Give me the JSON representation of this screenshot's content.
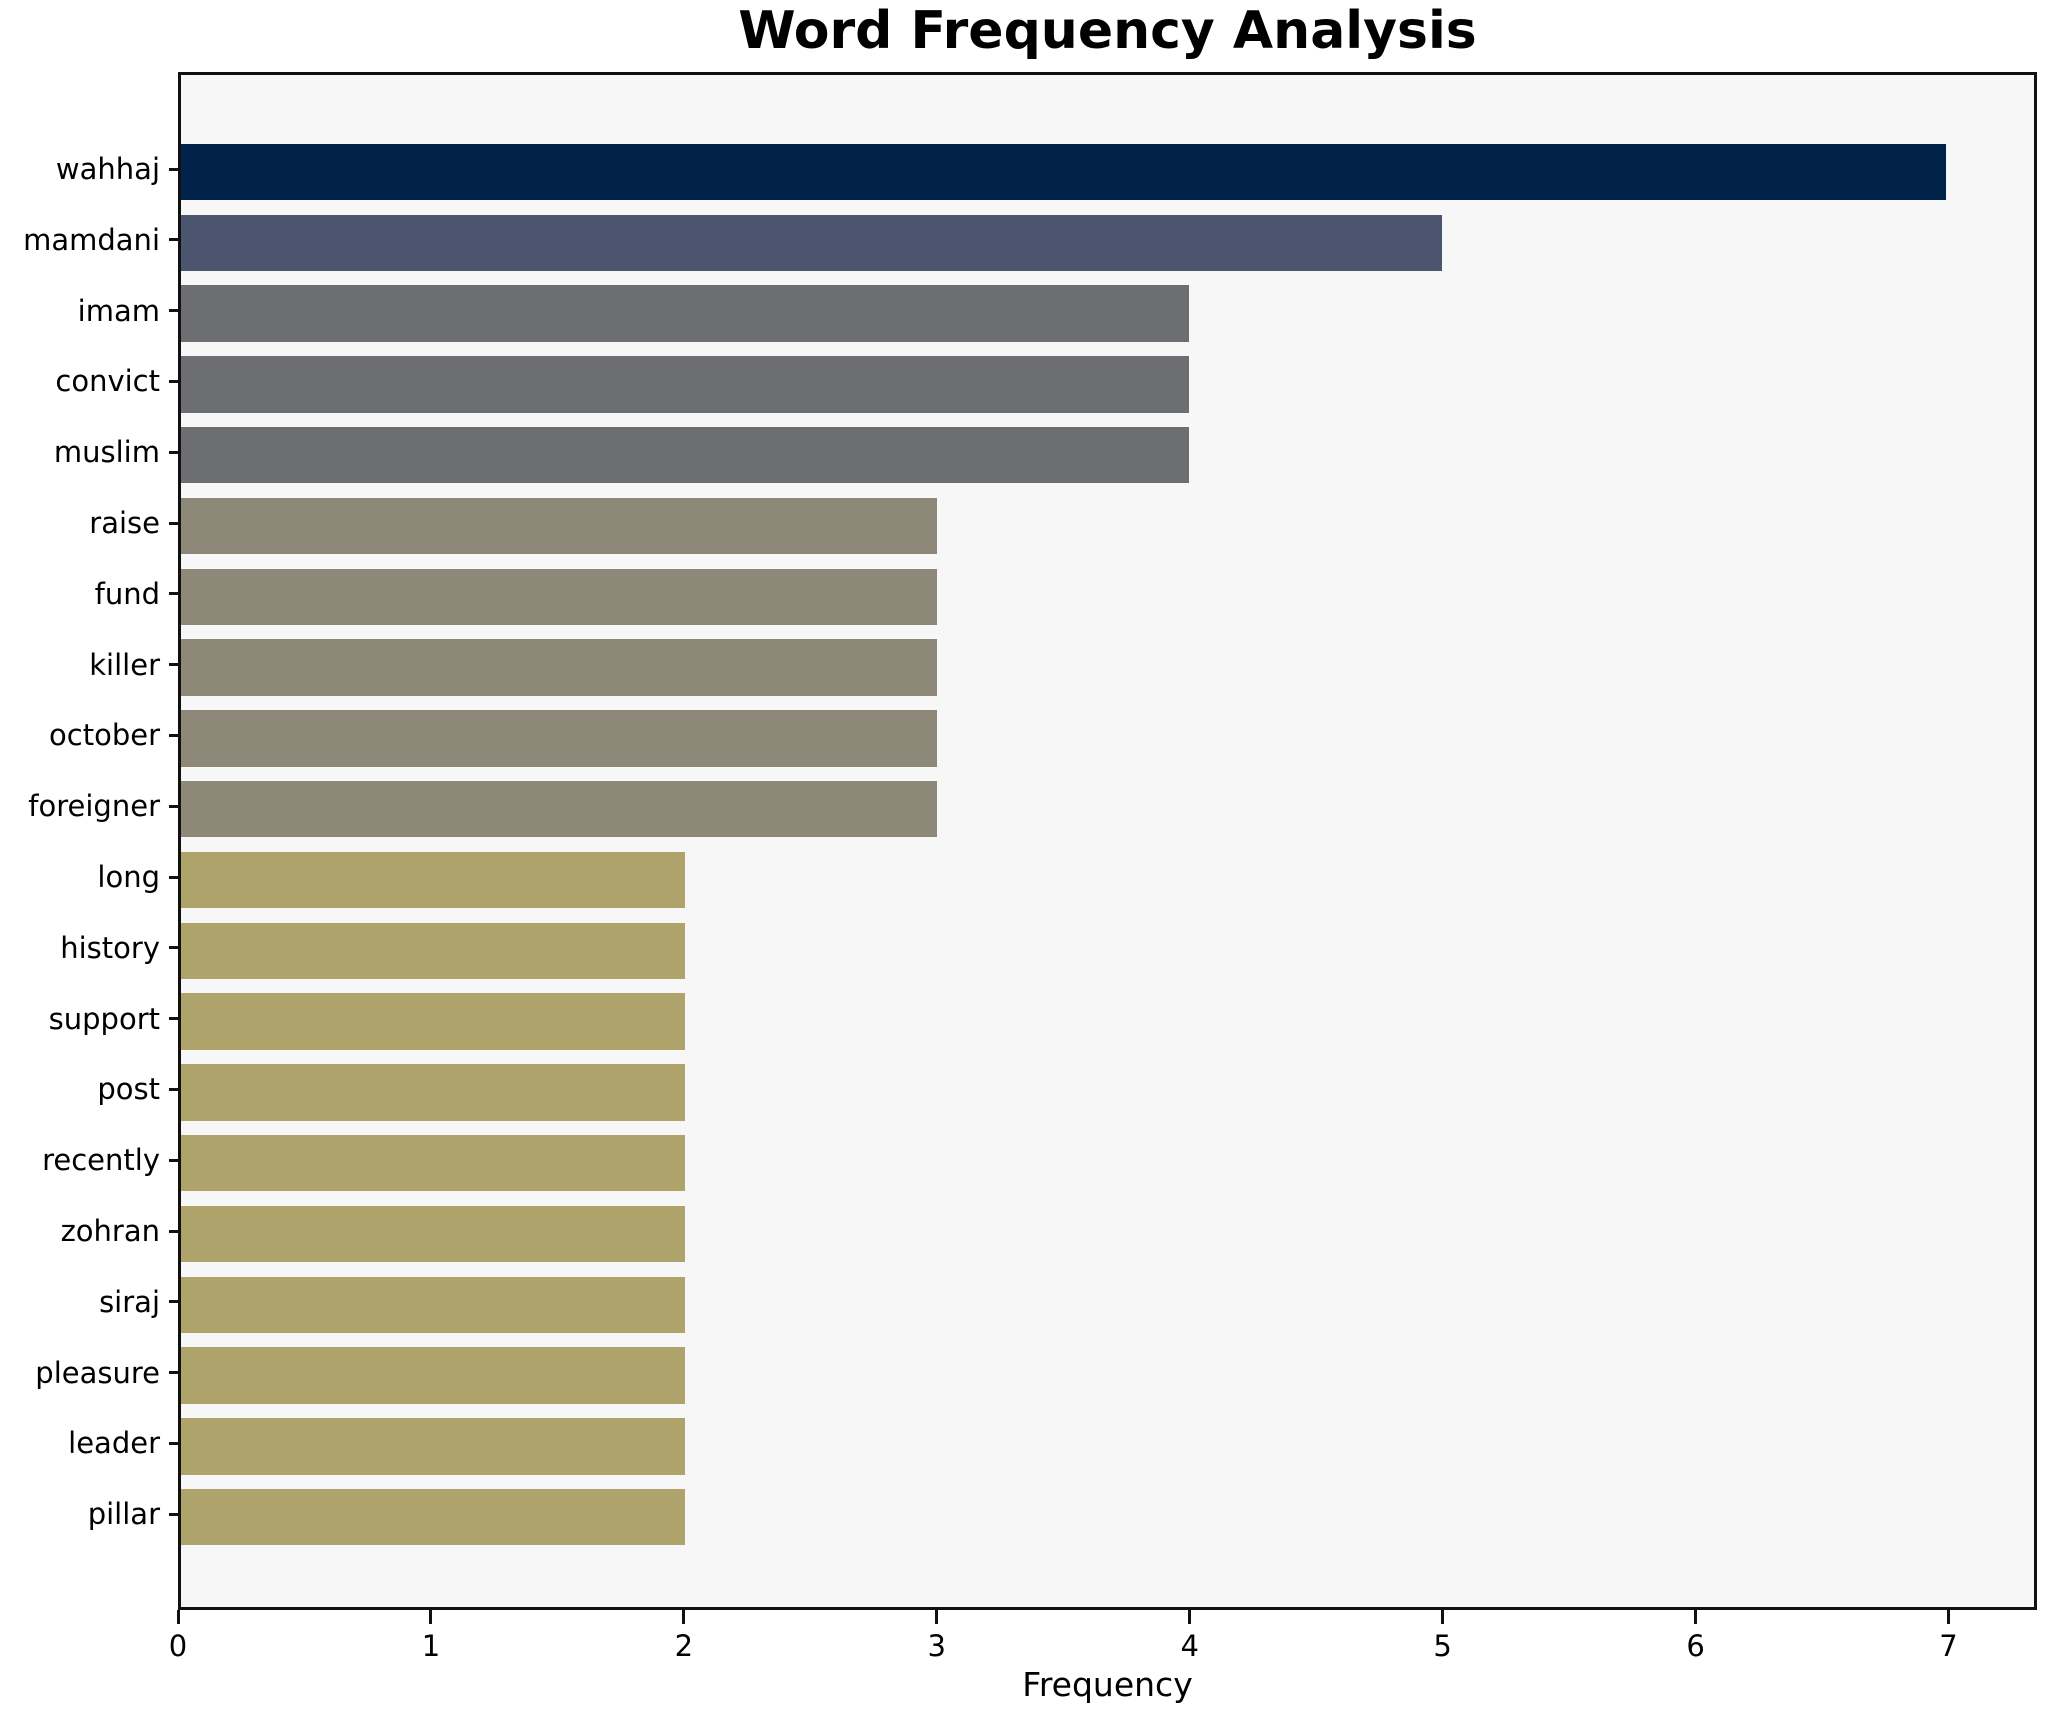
{
  "figure": {
    "background": "#ffffff",
    "plot_background": "#f7f7f7",
    "spine_color": "#111111",
    "text_color": "#000000"
  },
  "chart_data": {
    "type": "bar",
    "orientation": "horizontal",
    "title": "Word Frequency Analysis",
    "xlabel": "Frequency",
    "ylabel": "",
    "categories": [
      "wahhaj",
      "mamdani",
      "imam",
      "convict",
      "muslim",
      "raise",
      "fund",
      "killer",
      "october",
      "foreigner",
      "long",
      "history",
      "support",
      "post",
      "recently",
      "zohran",
      "siraj",
      "pleasure",
      "leader",
      "pillar"
    ],
    "values": [
      7,
      5,
      4,
      4,
      4,
      3,
      3,
      3,
      3,
      3,
      2,
      2,
      2,
      2,
      2,
      2,
      2,
      2,
      2,
      2
    ],
    "bar_colors": [
      "#022349",
      "#4b556d",
      "#6c6e71",
      "#6c6e71",
      "#6c6e71",
      "#8d8877",
      "#8d8877",
      "#8d8877",
      "#8d8877",
      "#8d8877",
      "#aea46b",
      "#aea46b",
      "#aea46b",
      "#aea46b",
      "#aea46b",
      "#aea46b",
      "#aea46b",
      "#aea46b",
      "#aea46b",
      "#aea46b"
    ],
    "value_color_map": {
      "7": "#022349",
      "5": "#4b556d",
      "4": "#6c6e71",
      "3": "#8d8877",
      "2": "#aea46b"
    },
    "xlim": [
      0,
      7.35
    ],
    "xticks": [
      0,
      1,
      2,
      3,
      4,
      5,
      6,
      7
    ],
    "grid": false,
    "legend": null
  }
}
